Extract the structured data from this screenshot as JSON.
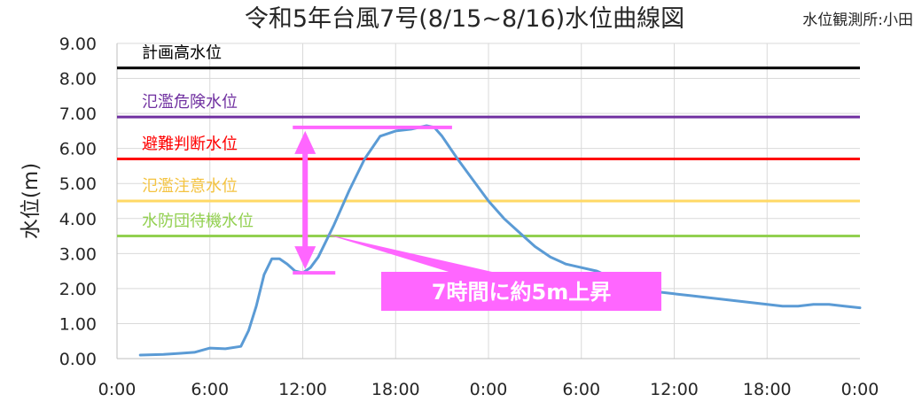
{
  "chart_data": {
    "type": "line",
    "title": "令和5年台風7号(8/15~8/16)水位曲線図",
    "station_label": "水位観測所:小田",
    "ylabel": "水位(m)",
    "xlabel": "",
    "ylim": [
      0,
      9
    ],
    "xlim_hours": [
      0,
      48
    ],
    "y_ticks": [
      "0.00",
      "1.00",
      "2.00",
      "3.00",
      "4.00",
      "5.00",
      "6.00",
      "7.00",
      "8.00",
      "9.00"
    ],
    "x_ticks": [
      "0:00",
      "6:00",
      "12:00",
      "18:00",
      "0:00",
      "6:00",
      "12:00",
      "18:00",
      "0:00"
    ],
    "grid": true,
    "series": [
      {
        "color": "#5b9bd5",
        "x_hours": [
          1.5,
          3,
          4,
          5,
          6,
          7,
          8,
          8.5,
          9,
          9.5,
          10,
          10.5,
          11,
          11.5,
          12,
          12.5,
          13,
          14,
          15,
          16,
          17,
          18,
          19,
          20,
          20.5,
          21,
          22,
          23,
          24,
          25,
          26,
          27,
          28,
          29,
          30,
          31,
          32,
          33,
          34,
          35,
          36,
          37,
          38,
          39,
          40,
          41,
          42,
          43,
          44,
          45,
          46,
          47,
          48
        ],
        "values": [
          0.1,
          0.12,
          0.15,
          0.18,
          0.3,
          0.28,
          0.35,
          0.8,
          1.5,
          2.4,
          2.85,
          2.85,
          2.7,
          2.5,
          2.45,
          2.6,
          2.9,
          3.8,
          4.8,
          5.7,
          6.35,
          6.5,
          6.55,
          6.65,
          6.6,
          6.35,
          5.7,
          5.1,
          4.5,
          4.0,
          3.6,
          3.2,
          2.9,
          2.7,
          2.6,
          2.5,
          2.3,
          2.1,
          2.0,
          1.9,
          1.85,
          1.8,
          1.75,
          1.7,
          1.65,
          1.6,
          1.55,
          1.5,
          1.5,
          1.55,
          1.55,
          1.5,
          1.45
        ]
      }
    ],
    "reference_levels": [
      {
        "name": "計画高水位",
        "value": 8.3,
        "color": "#000000",
        "label_color": "#000000"
      },
      {
        "name": "氾濫危険水位",
        "value": 6.9,
        "color": "#7030a0",
        "label_color": "#7030a0"
      },
      {
        "name": "避難判断水位",
        "value": 5.7,
        "color": "#ff0000",
        "label_color": "#ff0000"
      },
      {
        "name": "氾濫注意水位",
        "value": 4.5,
        "color": "#ffd966",
        "label_color": "#f4c340"
      },
      {
        "name": "水防団待機水位",
        "value": 3.5,
        "color": "#92d050",
        "label_color": "#92d050"
      }
    ],
    "annotation": {
      "text": "7時間に約5m上昇",
      "color": "#ff66ff",
      "from_hour": 12.5,
      "to_hour": 20.5,
      "low_value": 2.45,
      "high_value": 6.6
    }
  }
}
